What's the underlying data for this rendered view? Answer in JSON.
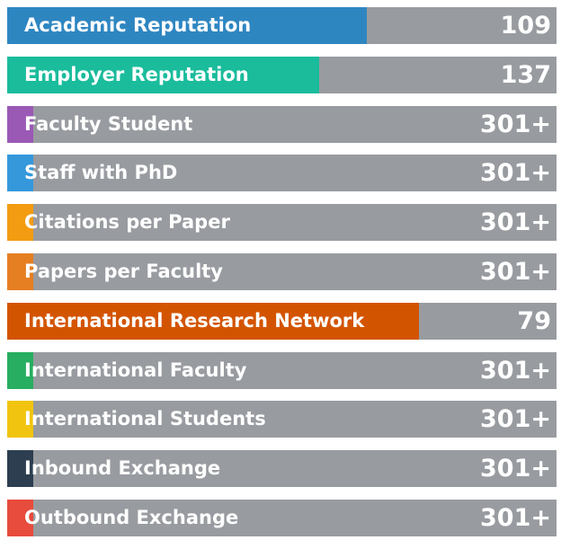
{
  "chart_data": {
    "type": "bar",
    "orientation": "horizontal",
    "categories": [
      "Academic Reputation",
      "Employer Reputation",
      "Faculty Student",
      "Staff with PhD",
      "Citations per Paper",
      "Papers per Faculty",
      "International Research Network",
      "International Faculty",
      "International Students",
      "Inbound Exchange",
      "Outbound Exchange"
    ],
    "value_labels": [
      "109",
      "137",
      "301+",
      "301+",
      "301+",
      "301+",
      "79",
      "301+",
      "301+",
      "301+",
      "301+"
    ],
    "fill_fractions": [
      0.655,
      0.568,
      0.048,
      0.048,
      0.048,
      0.048,
      0.75,
      0.048,
      0.048,
      0.048,
      0.048
    ],
    "colors": [
      "#2e86c1",
      "#1abc9c",
      "#9b59b6",
      "#3498db",
      "#f39c12",
      "#e67e22",
      "#d35400",
      "#27ae60",
      "#f1c40f",
      "#2c3e50",
      "#e74c3c"
    ],
    "track_color": "#989ba0",
    "title": "",
    "xlabel": "",
    "ylabel": ""
  }
}
